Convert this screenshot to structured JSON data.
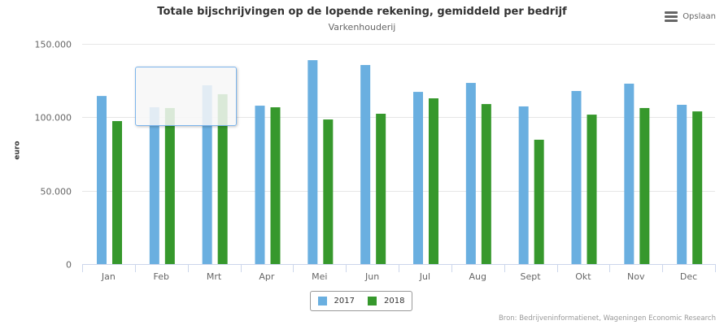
{
  "header": {
    "title": "Totale bijschrijvingen op de lopende rekening, gemiddeld per bedrijf",
    "subtitle": "Varkenhouderij",
    "export_label": "Opslaan",
    "export_icon": "hamburger-menu-icon"
  },
  "credits": "Bron: Bedrijveninformatienet, Wageningen Economic Research",
  "chart_data": {
    "type": "bar",
    "title": "Totale bijschrijvingen op de lopende rekening, gemiddeld per bedrijf",
    "subtitle": "Varkenhouderij",
    "xlabel": "",
    "ylabel": "euro",
    "ylim": [
      0,
      150000
    ],
    "yticks": [
      0,
      50000,
      100000,
      150000
    ],
    "ytick_labels": [
      "0",
      "50.000",
      "100.000",
      "150.000"
    ],
    "grid": true,
    "legend": "bottom-center",
    "categories": [
      "Jan",
      "Feb",
      "Mrt",
      "Apr",
      "Mei",
      "Jun",
      "Jul",
      "Aug",
      "Sept",
      "Okt",
      "Nov",
      "Dec"
    ],
    "series": [
      {
        "name": "2017",
        "color": "#6aafe0",
        "values": [
          114500,
          106800,
          121800,
          107900,
          138900,
          135600,
          117300,
          123400,
          107400,
          117900,
          122900,
          108500
        ]
      },
      {
        "name": "2018",
        "color": "#36982c",
        "values": [
          97400,
          106300,
          115700,
          106800,
          98500,
          102400,
          112900,
          109000,
          84700,
          101800,
          106300,
          104000
        ]
      }
    ]
  }
}
